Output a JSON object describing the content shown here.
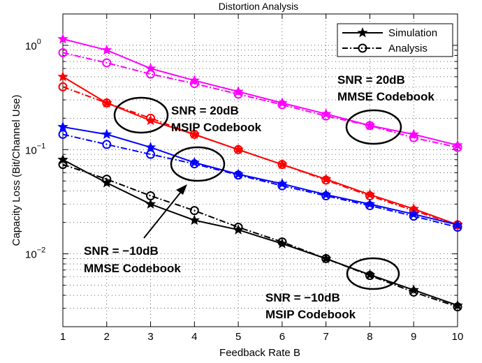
{
  "chart_data": {
    "type": "line",
    "title": "Distortion Analysis",
    "xlabel": "Feedback Rate B",
    "ylabel": "Capacity Loss (Bit/Channel Use)",
    "yscale": "log",
    "xlim": [
      1,
      10
    ],
    "ylim": [
      0.002,
      2
    ],
    "x": [
      1,
      2,
      3,
      4,
      5,
      6,
      7,
      8,
      9,
      10
    ],
    "x_tick_labels": [
      "1",
      "2",
      "3",
      "4",
      "5",
      "6",
      "7",
      "8",
      "9",
      "10"
    ],
    "y_ticks": [
      {
        "value": 0.01,
        "base": "10",
        "exp": "−2"
      },
      {
        "value": 0.1,
        "base": "10",
        "exp": "−1"
      },
      {
        "value": 1,
        "base": "10",
        "exp": "0"
      }
    ],
    "grid": true,
    "legend": {
      "position": "top-right",
      "entries": [
        {
          "label": "Simulation",
          "marker": "star",
          "line": "solid"
        },
        {
          "label": "Analysis",
          "marker": "circle",
          "line": "dashdot"
        }
      ]
    },
    "series": [
      {
        "color": "#ff00ff",
        "kind": "simulation",
        "values": [
          1.15,
          0.9,
          0.6,
          0.46,
          0.36,
          0.28,
          0.22,
          0.17,
          0.14,
          0.11
        ]
      },
      {
        "color": "#ff00ff",
        "kind": "analysis",
        "values": [
          0.85,
          0.68,
          0.53,
          0.43,
          0.34,
          0.27,
          0.21,
          0.17,
          0.13,
          0.105
        ]
      },
      {
        "color": "#ff0000",
        "kind": "simulation",
        "values": [
          0.5,
          0.28,
          0.19,
          0.14,
          0.1,
          0.072,
          0.052,
          0.037,
          0.027,
          0.019
        ]
      },
      {
        "color": "#ff0000",
        "kind": "analysis",
        "values": [
          0.4,
          0.28,
          0.2,
          0.14,
          0.1,
          0.072,
          0.051,
          0.036,
          0.026,
          0.019
        ]
      },
      {
        "color": "#0000ff",
        "kind": "simulation",
        "values": [
          0.165,
          0.14,
          0.105,
          0.075,
          0.058,
          0.047,
          0.037,
          0.03,
          0.024,
          0.019
        ]
      },
      {
        "color": "#0000ff",
        "kind": "analysis",
        "values": [
          0.14,
          0.112,
          0.09,
          0.073,
          0.057,
          0.045,
          0.036,
          0.029,
          0.023,
          0.018
        ]
      },
      {
        "color": "#000000",
        "kind": "simulation",
        "values": [
          0.08,
          0.048,
          0.03,
          0.021,
          0.017,
          0.0125,
          0.009,
          0.0063,
          0.0045,
          0.0032
        ]
      },
      {
        "color": "#000000",
        "kind": "analysis",
        "values": [
          0.072,
          0.052,
          0.036,
          0.026,
          0.018,
          0.013,
          0.009,
          0.0062,
          0.0043,
          0.0031
        ]
      }
    ],
    "annotations": [
      {
        "lines": [
          "SNR = 20dB",
          "MMSE Codebook"
        ]
      },
      {
        "lines": [
          "SNR = 20dB",
          "MSIP Codebook"
        ]
      },
      {
        "lines": [
          "SNR = −10dB",
          "MMSE Codebook"
        ]
      },
      {
        "lines": [
          "SNR = −10dB",
          "MSIP Codebook"
        ]
      }
    ]
  }
}
